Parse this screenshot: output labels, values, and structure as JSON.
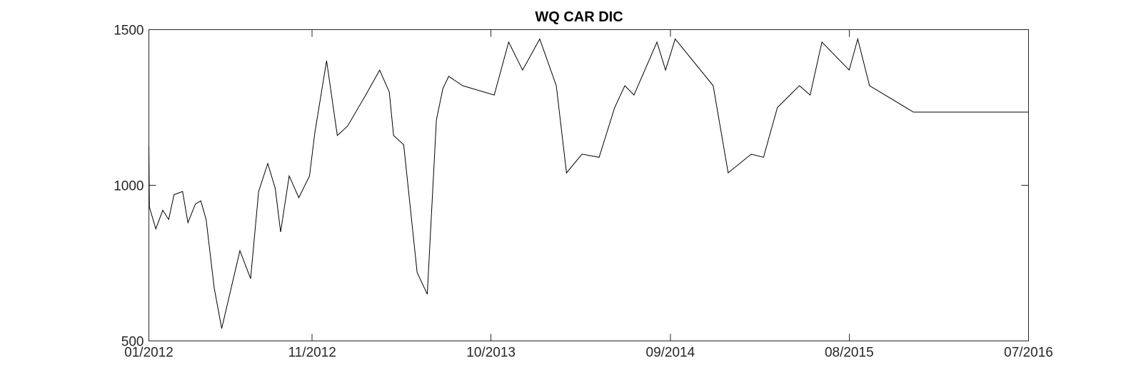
{
  "chart_data": {
    "type": "line",
    "title": "WQ CAR DIC",
    "xlabel": "",
    "ylabel": "",
    "xlim": [
      "2012-01-01",
      "2016-07-01"
    ],
    "ylim": [
      500,
      1500
    ],
    "x_ticks": [
      "2012-01-01",
      "2012-11-01",
      "2013-10-01",
      "2014-09-01",
      "2015-08-01",
      "2016-07-01"
    ],
    "x_tick_labels": [
      "01/2012",
      "11/2012",
      "10/2013",
      "09/2014",
      "08/2015",
      "07/2016"
    ],
    "y_ticks": [
      500,
      1000,
      1500
    ],
    "y_tick_labels": [
      "500",
      "1000",
      "1500"
    ],
    "grid": false,
    "legend": "none",
    "line_color": "#000000",
    "series": [
      {
        "x": [
          "2012-01-01",
          "2012-01-02",
          "2012-01-14",
          "2012-01-27",
          "2012-02-07",
          "2012-02-17",
          "2012-03-04",
          "2012-03-14",
          "2012-03-28",
          "2012-04-07",
          "2012-04-17",
          "2012-05-02",
          "2012-05-16",
          "2012-06-19",
          "2012-07-09",
          "2012-07-24",
          "2012-08-10",
          "2012-08-24",
          "2012-09-03",
          "2012-09-19",
          "2012-10-07",
          "2012-10-27",
          "2012-11-06",
          "2012-11-28",
          "2012-12-18",
          "2013-01-06",
          "2013-02-09",
          "2013-03-07",
          "2013-03-25",
          "2013-04-02",
          "2013-04-21",
          "2013-05-16",
          "2013-06-04",
          "2013-06-21",
          "2013-07-03",
          "2013-07-14",
          "2013-08-09",
          "2013-10-07",
          "2013-11-03",
          "2013-11-29",
          "2013-12-31",
          "2014-01-31",
          "2014-02-19",
          "2014-03-20",
          "2014-04-21",
          "2014-05-20",
          "2014-06-08",
          "2014-06-25",
          "2014-08-07",
          "2014-08-23",
          "2014-09-10",
          "2014-11-20",
          "2014-12-18",
          "2015-01-30",
          "2015-02-22",
          "2015-03-20",
          "2015-04-30",
          "2015-05-20",
          "2015-06-11",
          "2015-08-01",
          "2015-08-17",
          "2015-09-08",
          "2015-11-29",
          "2015-12-28",
          "2016-01-31",
          "2016-03-04",
          "2016-03-30",
          "2016-05-03",
          "2016-06-23",
          "2016-07-01"
        ],
        "y": [
          1125,
          930,
          860,
          920,
          890,
          970,
          980,
          880,
          940,
          950,
          890,
          670,
          540,
          790,
          700,
          980,
          1070,
          990,
          850,
          1030,
          960,
          1030,
          1170,
          1400,
          1160,
          1190,
          1290,
          1370,
          1300,
          1160,
          1130,
          720,
          650,
          1210,
          1310,
          1350,
          1320,
          1290,
          1460,
          1370,
          1470,
          1320,
          1040,
          1100,
          1090,
          1250,
          1320,
          1290,
          1460,
          1370,
          1470,
          1320,
          1040,
          1100,
          1090,
          1250,
          1320,
          1290,
          1460,
          1370,
          1470,
          1320,
          1235,
          1235,
          1235,
          1235,
          1235,
          1235,
          1235,
          1235
        ]
      }
    ]
  }
}
